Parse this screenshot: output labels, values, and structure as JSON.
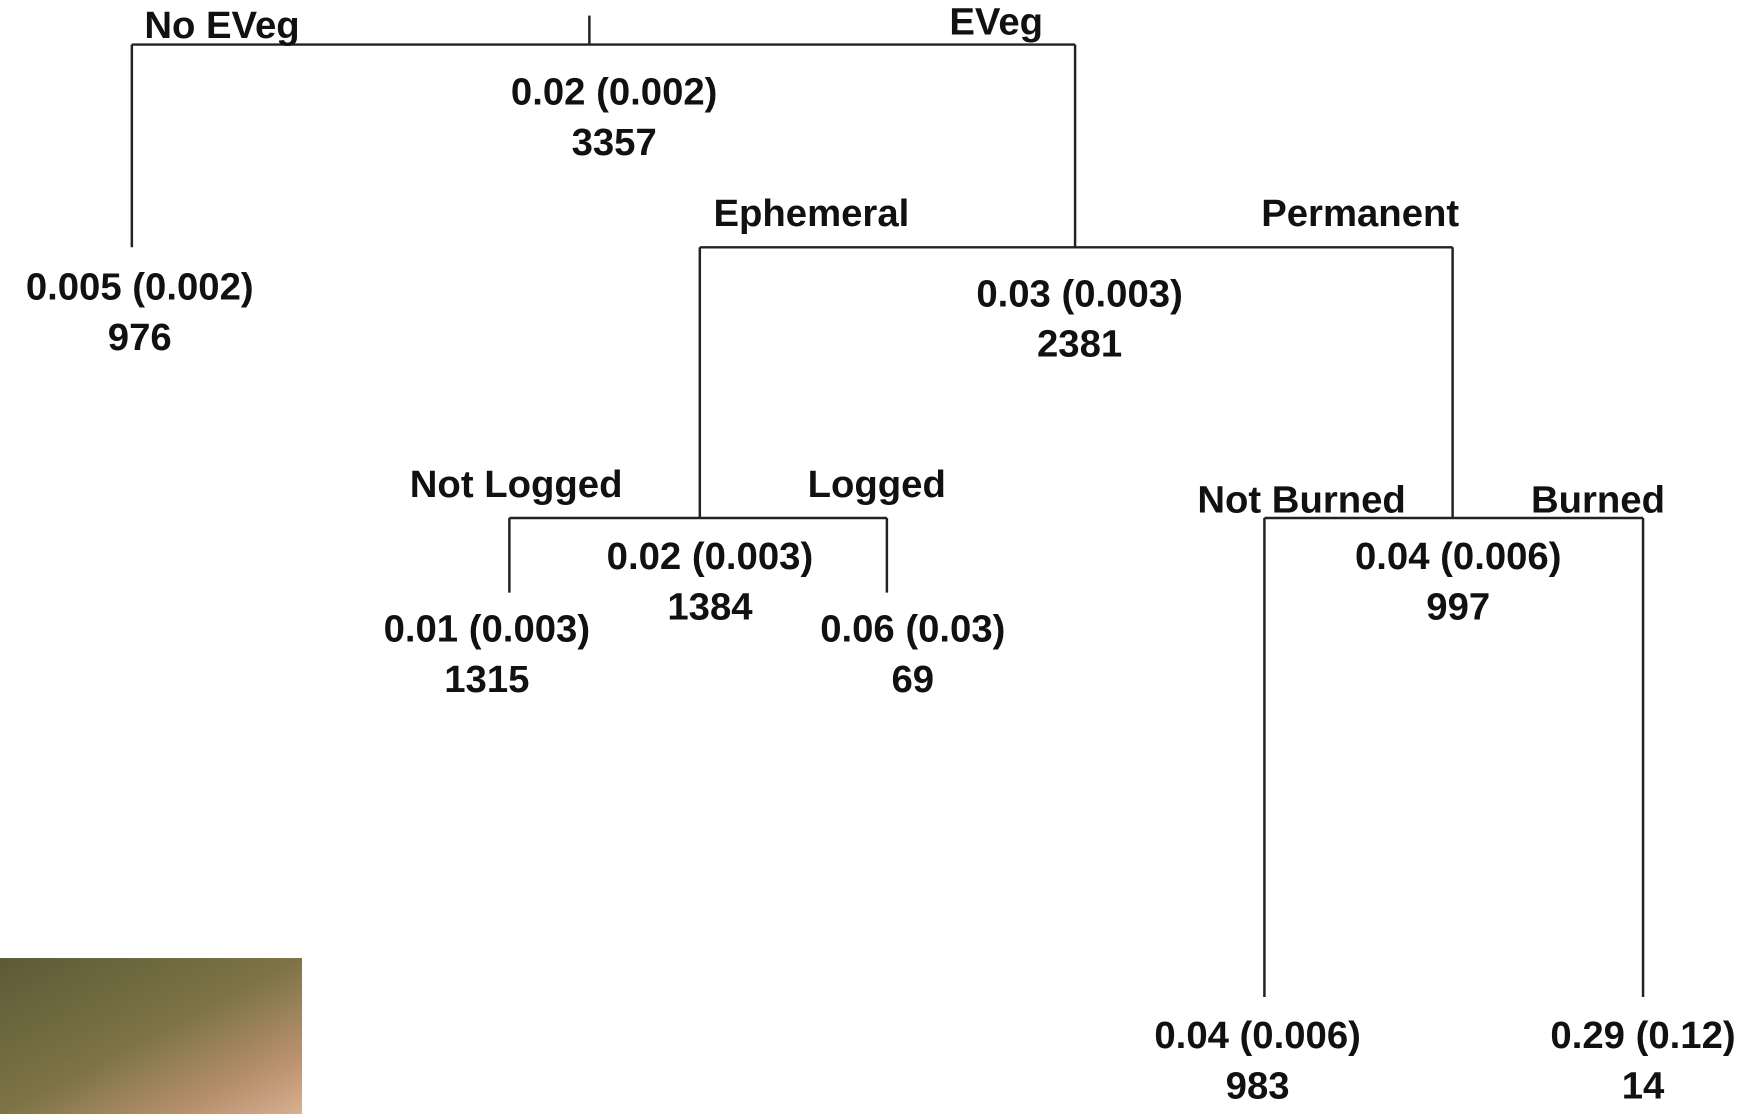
{
  "nodes": [
    {
      "mean": "0.02 (0.002)",
      "n": "3357"
    },
    {
      "mean": "0.005 (0.002)",
      "n": "976"
    },
    {
      "mean": "0.03 (0.003)",
      "n": "2381"
    },
    {
      "mean": "0.02 (0.003)",
      "n": "1384"
    },
    {
      "mean": "0.01 (0.003)",
      "n": "1315"
    },
    {
      "mean": "0.06 (0.03)",
      "n": "69"
    },
    {
      "mean": "0.04 (0.006)",
      "n": "997"
    },
    {
      "mean": "0.04 (0.006)",
      "n": "983"
    },
    {
      "mean": "0.29 (0.12)",
      "n": "14"
    }
  ],
  "splits": [
    {
      "left": "No EVeg",
      "right": "EVeg"
    },
    {
      "left": "Ephemeral",
      "right": "Permanent"
    },
    {
      "left": "Not Logged",
      "right": "Logged"
    },
    {
      "left": "Not Burned",
      "right": "Burned"
    }
  ]
}
